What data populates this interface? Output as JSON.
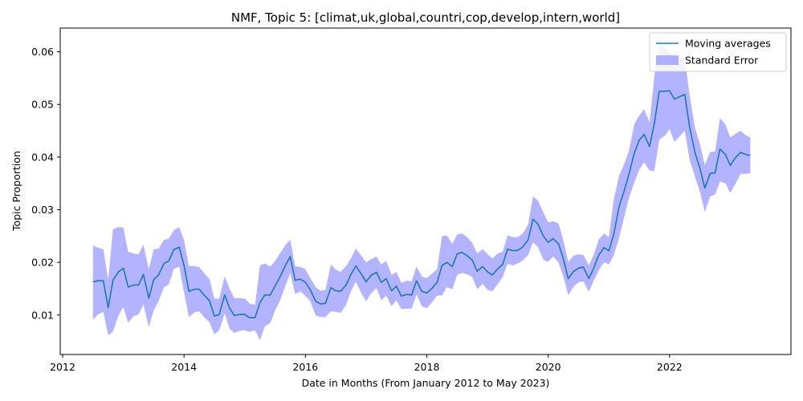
{
  "chart_data": {
    "type": "line",
    "title": "NMF, Topic 5: [climat,uk,global,countri,cop,develop,intern,world]",
    "xlabel": "Date in Months (From January 2012 to May 2023)",
    "ylabel": "Topic Proportion",
    "xlim": [
      2011.96,
      2024.0
    ],
    "ylim": [
      0.0025,
      0.0645
    ],
    "xticks": [
      2012,
      2014,
      2016,
      2018,
      2020,
      2022
    ],
    "xtick_labels": [
      "2012",
      "2014",
      "2016",
      "2018",
      "2020",
      "2022"
    ],
    "yticks": [
      0.01,
      0.02,
      0.03,
      0.04,
      0.05,
      0.06
    ],
    "ytick_labels": [
      "0.01",
      "0.02",
      "0.03",
      "0.04",
      "0.05",
      "0.06"
    ],
    "grid": false,
    "legend_position": "top-right",
    "legend": [
      {
        "label": "Moving averages",
        "kind": "line",
        "color": "#1f77b4"
      },
      {
        "label": "Standard Error",
        "kind": "band",
        "color": "#8080ff"
      }
    ],
    "series": [
      {
        "name": "Moving averages",
        "color": "#1f77b4",
        "x": [
          2012.5,
          2012.58,
          2012.67,
          2012.75,
          2012.83,
          2012.92,
          2013.0,
          2013.08,
          2013.17,
          2013.25,
          2013.33,
          2013.42,
          2013.5,
          2013.58,
          2013.67,
          2013.75,
          2013.83,
          2013.92,
          2014.0,
          2014.08,
          2014.17,
          2014.25,
          2014.33,
          2014.42,
          2014.5,
          2014.58,
          2014.67,
          2014.75,
          2014.83,
          2014.92,
          2015.0,
          2015.08,
          2015.17,
          2015.25,
          2015.33,
          2015.42,
          2015.5,
          2015.58,
          2015.67,
          2015.75,
          2015.83,
          2015.92,
          2016.0,
          2016.08,
          2016.17,
          2016.25,
          2016.33,
          2016.42,
          2016.5,
          2016.58,
          2016.67,
          2016.75,
          2016.83,
          2016.92,
          2017.0,
          2017.08,
          2017.17,
          2017.25,
          2017.33,
          2017.42,
          2017.5,
          2017.58,
          2017.67,
          2017.75,
          2017.83,
          2017.92,
          2018.0,
          2018.08,
          2018.17,
          2018.25,
          2018.33,
          2018.42,
          2018.5,
          2018.58,
          2018.67,
          2018.75,
          2018.83,
          2018.92,
          2019.0,
          2019.08,
          2019.17,
          2019.25,
          2019.33,
          2019.42,
          2019.5,
          2019.58,
          2019.67,
          2019.75,
          2019.83,
          2019.92,
          2020.0,
          2020.08,
          2020.17,
          2020.25,
          2020.33,
          2020.42,
          2020.5,
          2020.58,
          2020.67,
          2020.75,
          2020.83,
          2020.92,
          2021.0,
          2021.08,
          2021.17,
          2021.25,
          2021.33,
          2021.42,
          2021.5,
          2021.58,
          2021.67,
          2021.75,
          2021.83,
          2021.92,
          2022.0,
          2022.08,
          2022.17,
          2022.25,
          2022.33,
          2022.42,
          2022.5,
          2022.58,
          2022.67,
          2022.75,
          2022.83,
          2022.92,
          2023.0,
          2023.08,
          2023.17,
          2023.25,
          2023.33
        ],
        "y": [
          0.0163,
          0.0165,
          0.0165,
          0.0114,
          0.0166,
          0.0182,
          0.0189,
          0.0153,
          0.0157,
          0.0157,
          0.0177,
          0.0132,
          0.0167,
          0.0176,
          0.0198,
          0.0203,
          0.0224,
          0.0229,
          0.0194,
          0.0145,
          0.0149,
          0.0149,
          0.0138,
          0.0127,
          0.0098,
          0.0101,
          0.0138,
          0.0113,
          0.0099,
          0.0101,
          0.0101,
          0.0095,
          0.0095,
          0.0123,
          0.0138,
          0.0138,
          0.0155,
          0.0172,
          0.0194,
          0.0211,
          0.0166,
          0.0168,
          0.0162,
          0.0148,
          0.0126,
          0.0121,
          0.0122,
          0.0152,
          0.0146,
          0.0145,
          0.0157,
          0.0177,
          0.0193,
          0.0178,
          0.0163,
          0.0175,
          0.0181,
          0.0162,
          0.0169,
          0.0146,
          0.0155,
          0.0136,
          0.0139,
          0.0138,
          0.0165,
          0.0145,
          0.0142,
          0.015,
          0.0162,
          0.0194,
          0.02,
          0.0192,
          0.0216,
          0.0219,
          0.0212,
          0.0204,
          0.0183,
          0.0192,
          0.0182,
          0.0176,
          0.0188,
          0.0196,
          0.0225,
          0.0222,
          0.0223,
          0.0229,
          0.0243,
          0.0282,
          0.0273,
          0.025,
          0.0238,
          0.0245,
          0.0235,
          0.0207,
          0.0169,
          0.0183,
          0.0189,
          0.0191,
          0.0169,
          0.0189,
          0.0213,
          0.0228,
          0.0222,
          0.0253,
          0.0307,
          0.0335,
          0.0367,
          0.0408,
          0.0432,
          0.0443,
          0.042,
          0.0464,
          0.0525,
          0.0525,
          0.0526,
          0.051,
          0.0515,
          0.0519,
          0.0457,
          0.0408,
          0.0379,
          0.0341,
          0.0369,
          0.037,
          0.0415,
          0.0405,
          0.0384,
          0.0398,
          0.0409,
          0.0405,
          0.0403
        ],
        "se_lower": [
          0.0091,
          0.0101,
          0.0106,
          0.0061,
          0.0069,
          0.0099,
          0.0115,
          0.0085,
          0.0098,
          0.0101,
          0.012,
          0.0077,
          0.0109,
          0.0126,
          0.0153,
          0.0158,
          0.0187,
          0.0192,
          0.0143,
          0.0096,
          0.0105,
          0.0107,
          0.0096,
          0.0086,
          0.0063,
          0.0071,
          0.0103,
          0.0074,
          0.0066,
          0.007,
          0.0071,
          0.0068,
          0.0071,
          0.0052,
          0.0078,
          0.0085,
          0.0108,
          0.0127,
          0.0155,
          0.0179,
          0.014,
          0.0145,
          0.0136,
          0.0126,
          0.0099,
          0.0096,
          0.0096,
          0.0107,
          0.0106,
          0.0104,
          0.0119,
          0.0145,
          0.0163,
          0.0142,
          0.0126,
          0.0141,
          0.0151,
          0.0128,
          0.0137,
          0.0117,
          0.0128,
          0.0111,
          0.0112,
          0.0112,
          0.0139,
          0.0116,
          0.0113,
          0.0123,
          0.0137,
          0.0137,
          0.0153,
          0.0149,
          0.0176,
          0.018,
          0.0177,
          0.0172,
          0.0149,
          0.0159,
          0.0148,
          0.0145,
          0.0159,
          0.0172,
          0.0197,
          0.0194,
          0.0198,
          0.0203,
          0.0214,
          0.0238,
          0.0229,
          0.0205,
          0.0201,
          0.0211,
          0.02,
          0.0173,
          0.0138,
          0.0154,
          0.0162,
          0.0164,
          0.0144,
          0.0165,
          0.0184,
          0.02,
          0.0196,
          0.0213,
          0.0247,
          0.0285,
          0.0322,
          0.0352,
          0.0376,
          0.039,
          0.0374,
          0.0374,
          0.0433,
          0.044,
          0.0453,
          0.0429,
          0.044,
          0.045,
          0.0395,
          0.0362,
          0.0334,
          0.0296,
          0.0325,
          0.0329,
          0.0353,
          0.035,
          0.0332,
          0.0348,
          0.0368,
          0.0368,
          0.0369
        ],
        "se_upper": [
          0.0232,
          0.0228,
          0.0225,
          0.0167,
          0.0263,
          0.0267,
          0.0266,
          0.022,
          0.0217,
          0.0215,
          0.0234,
          0.0186,
          0.0225,
          0.0226,
          0.0243,
          0.0245,
          0.0261,
          0.0267,
          0.0242,
          0.0193,
          0.0193,
          0.0191,
          0.018,
          0.0168,
          0.0131,
          0.0131,
          0.0174,
          0.015,
          0.0132,
          0.0132,
          0.0131,
          0.0122,
          0.0119,
          0.0194,
          0.0198,
          0.0192,
          0.0202,
          0.0217,
          0.0233,
          0.0243,
          0.0193,
          0.0191,
          0.0187,
          0.017,
          0.0153,
          0.0146,
          0.0148,
          0.0196,
          0.0186,
          0.0182,
          0.0193,
          0.0208,
          0.0226,
          0.0213,
          0.02,
          0.0206,
          0.0211,
          0.0196,
          0.0203,
          0.0176,
          0.0182,
          0.0161,
          0.0165,
          0.0164,
          0.0192,
          0.0173,
          0.017,
          0.0178,
          0.0187,
          0.025,
          0.0251,
          0.0235,
          0.0253,
          0.0255,
          0.0247,
          0.0237,
          0.0217,
          0.0225,
          0.0216,
          0.0207,
          0.0217,
          0.022,
          0.0251,
          0.0248,
          0.0248,
          0.0255,
          0.0272,
          0.0325,
          0.0318,
          0.0295,
          0.0276,
          0.0278,
          0.0274,
          0.0242,
          0.0201,
          0.0213,
          0.0215,
          0.0214,
          0.0194,
          0.0214,
          0.0243,
          0.0255,
          0.0248,
          0.0319,
          0.0365,
          0.0386,
          0.0412,
          0.0463,
          0.0479,
          0.0491,
          0.0466,
          0.0555,
          0.0618,
          0.0609,
          0.0599,
          0.059,
          0.0589,
          0.0587,
          0.0518,
          0.0455,
          0.0425,
          0.0385,
          0.041,
          0.041,
          0.0474,
          0.0462,
          0.0437,
          0.0444,
          0.045,
          0.0442,
          0.0437
        ]
      }
    ]
  }
}
